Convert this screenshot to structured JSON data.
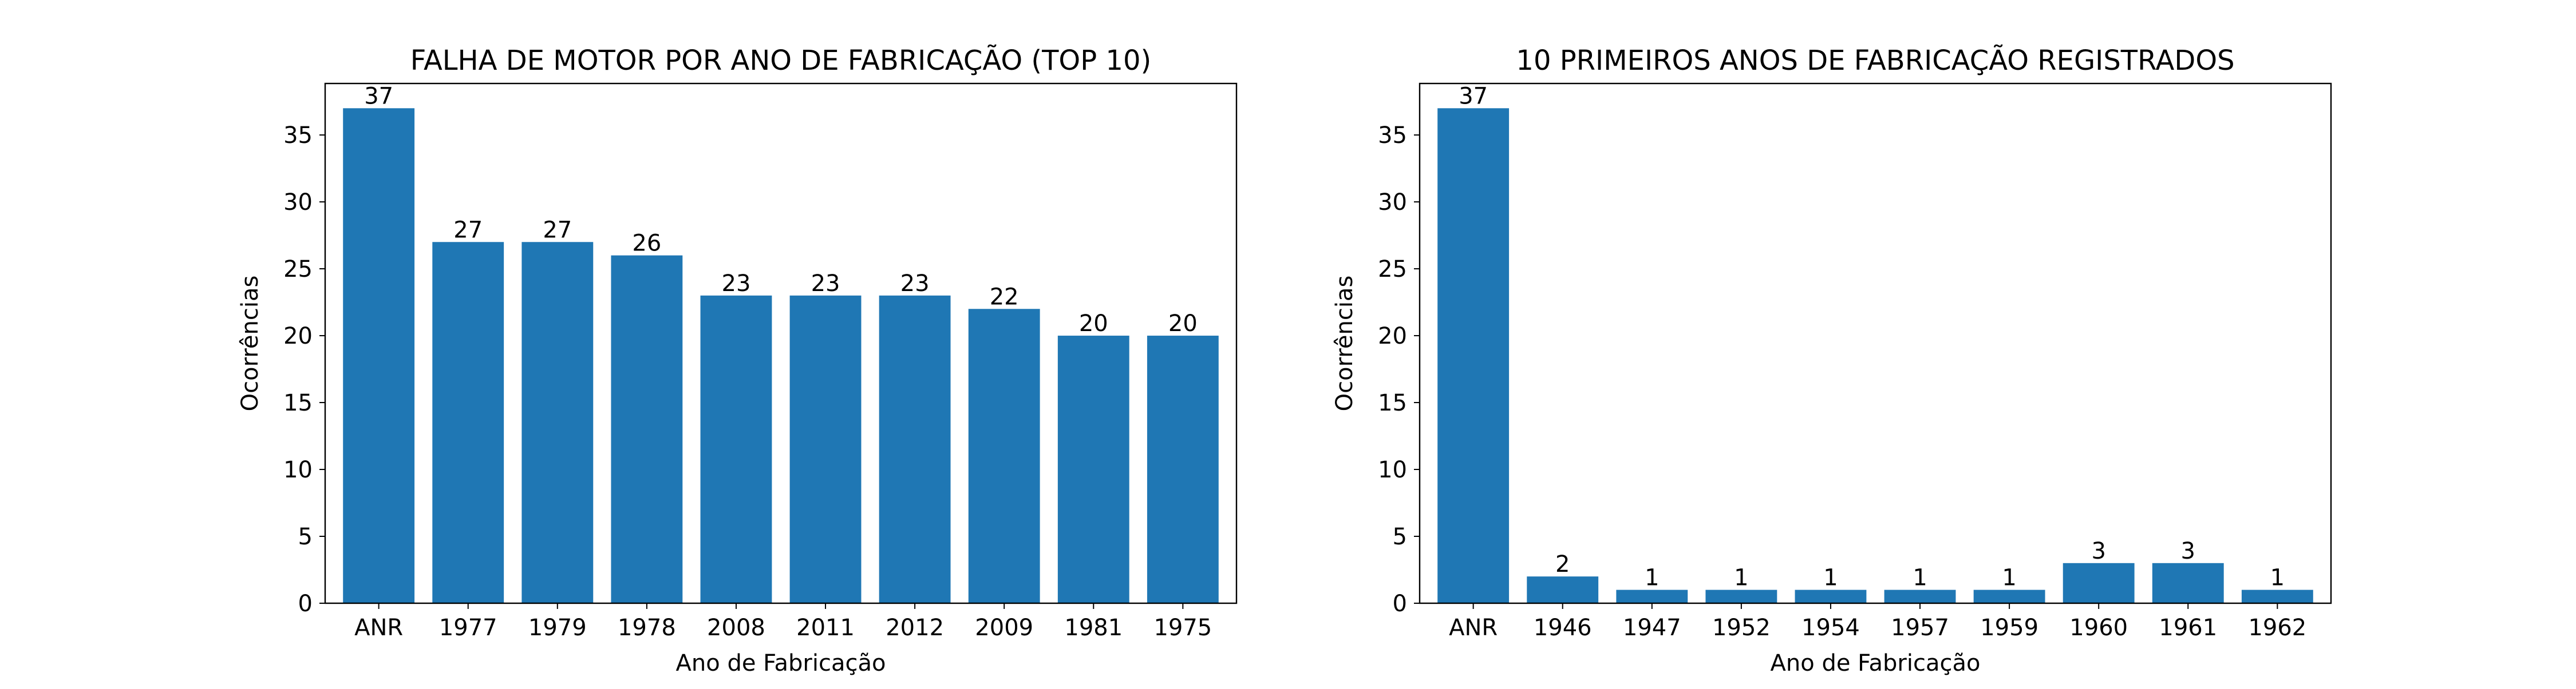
{
  "chart_data": [
    {
      "type": "bar",
      "title": "FALHA DE MOTOR POR ANO DE FABRICAÇÃO (TOP 10)",
      "xlabel": "Ano de Fabricação",
      "ylabel": "Ocorrências",
      "categories": [
        "ANR",
        "1977",
        "1979",
        "1978",
        "2008",
        "2011",
        "2012",
        "2009",
        "1981",
        "1975"
      ],
      "values": [
        37,
        27,
        27,
        26,
        23,
        23,
        23,
        22,
        20,
        20
      ],
      "ylim": [
        0,
        38.85
      ],
      "yticks": [
        0,
        5,
        10,
        15,
        20,
        25,
        30,
        35
      ],
      "bar_color": "#1f77b4",
      "grid": false,
      "data_labels": true
    },
    {
      "type": "bar",
      "title": "10 PRIMEIROS ANOS DE FABRICAÇÃO REGISTRADOS",
      "xlabel": "Ano de Fabricação",
      "ylabel": "Ocorrências",
      "categories": [
        "ANR",
        "1946",
        "1947",
        "1952",
        "1954",
        "1957",
        "1959",
        "1960",
        "1961",
        "1962"
      ],
      "values": [
        37,
        2,
        1,
        1,
        1,
        1,
        1,
        3,
        3,
        1
      ],
      "ylim": [
        0,
        38.85
      ],
      "yticks": [
        0,
        5,
        10,
        15,
        20,
        25,
        30,
        35
      ],
      "bar_color": "#1f77b4",
      "grid": false,
      "data_labels": true
    }
  ]
}
